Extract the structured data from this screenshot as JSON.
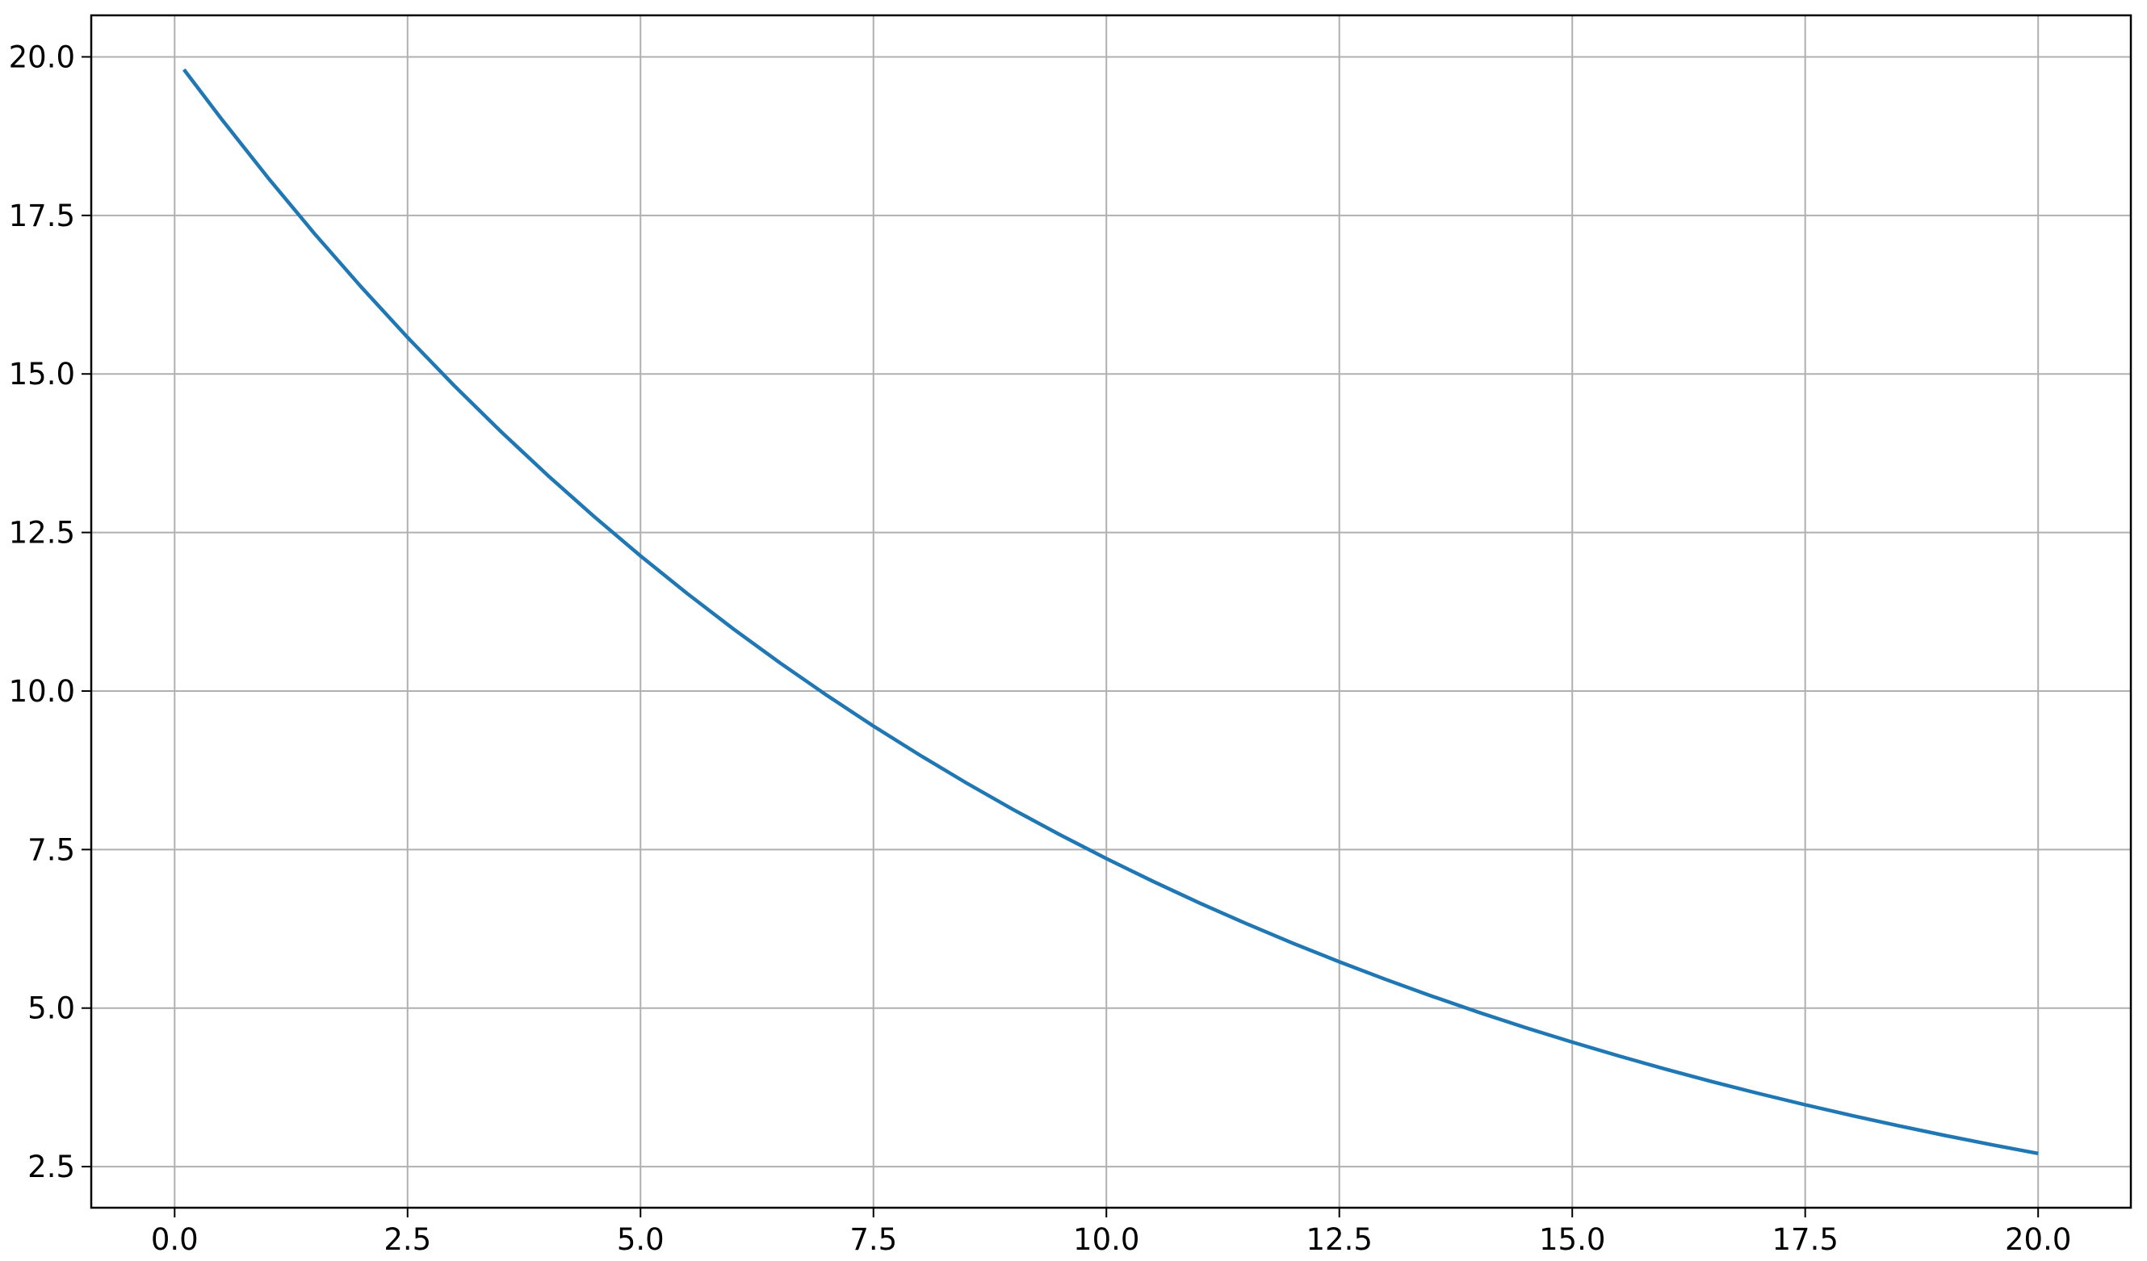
{
  "chart_data": {
    "type": "line",
    "title": "",
    "xlabel": "",
    "ylabel": "",
    "xlim": [
      -0.895,
      20.995
    ],
    "ylim": [
      1.852,
      20.655
    ],
    "grid": true,
    "xticks": [
      "0.0",
      "2.5",
      "5.0",
      "7.5",
      "10.0",
      "12.5",
      "15.0",
      "17.5",
      "20.0"
    ],
    "yticks": [
      "2.5",
      "5.0",
      "7.5",
      "10.0",
      "12.5",
      "15.0",
      "17.5",
      "20.0"
    ],
    "series": [
      {
        "color": "#1f77b4",
        "x": [
          0.1,
          0.5,
          1,
          1.5,
          2,
          2.5,
          3,
          3.5,
          4,
          4.5,
          5,
          5.5,
          6,
          6.5,
          7,
          7.5,
          8,
          8.5,
          9,
          9.5,
          10,
          10.5,
          11,
          11.5,
          12,
          12.5,
          13,
          13.5,
          14,
          14.5,
          15,
          15.5,
          16,
          16.5,
          17,
          17.5,
          18,
          18.5,
          19,
          19.5,
          20
        ],
        "y": [
          19.801,
          19.025,
          18.097,
          17.214,
          16.375,
          15.576,
          14.816,
          14.094,
          13.406,
          12.753,
          12.131,
          11.539,
          10.976,
          10.441,
          9.932,
          9.447,
          8.987,
          8.548,
          8.131,
          7.735,
          7.358,
          6.999,
          6.657,
          6.333,
          6.024,
          5.73,
          5.451,
          5.185,
          4.932,
          4.691,
          4.463,
          4.245,
          4.038,
          3.841,
          3.654,
          3.475,
          3.306,
          3.145,
          2.991,
          2.846,
          2.707
        ]
      }
    ]
  }
}
